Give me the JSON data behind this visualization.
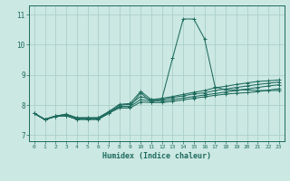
{
  "xlabel": "Humidex (Indice chaleur)",
  "background_color": "#cce8e3",
  "grid_color": "#aacfca",
  "line_color": "#1e6b5e",
  "xlim": [
    -0.5,
    23.5
  ],
  "ylim": [
    6.8,
    11.3
  ],
  "xticks": [
    0,
    1,
    2,
    3,
    4,
    5,
    6,
    7,
    8,
    9,
    10,
    11,
    12,
    13,
    14,
    15,
    16,
    17,
    18,
    19,
    20,
    21,
    22,
    23
  ],
  "yticks": [
    7,
    8,
    9,
    10,
    11
  ],
  "series": [
    [
      7.72,
      7.52,
      7.63,
      7.65,
      7.52,
      7.52,
      7.52,
      7.72,
      7.95,
      7.95,
      8.4,
      8.1,
      8.2,
      9.55,
      10.85,
      10.85,
      10.2,
      8.6,
      8.5,
      8.5,
      8.5,
      8.48,
      8.48,
      8.48
    ],
    [
      7.72,
      7.52,
      7.63,
      7.7,
      7.58,
      7.58,
      7.58,
      7.78,
      8.02,
      8.05,
      8.45,
      8.18,
      8.22,
      8.28,
      8.35,
      8.42,
      8.48,
      8.57,
      8.62,
      8.68,
      8.73,
      8.78,
      8.8,
      8.83
    ],
    [
      7.72,
      7.53,
      7.64,
      7.68,
      7.57,
      7.57,
      7.57,
      7.77,
      8.0,
      8.02,
      8.28,
      8.17,
      8.18,
      8.25,
      8.3,
      8.37,
      8.4,
      8.48,
      8.53,
      8.58,
      8.63,
      8.68,
      8.72,
      8.76
    ],
    [
      7.72,
      7.51,
      7.62,
      7.65,
      7.54,
      7.54,
      7.54,
      7.74,
      7.95,
      7.95,
      8.18,
      8.13,
      8.13,
      8.18,
      8.23,
      8.28,
      8.33,
      8.38,
      8.43,
      8.48,
      8.53,
      8.58,
      8.63,
      8.67
    ],
    [
      7.72,
      7.51,
      7.62,
      7.64,
      7.53,
      7.53,
      7.53,
      7.73,
      7.9,
      7.9,
      8.1,
      8.08,
      8.08,
      8.12,
      8.17,
      8.22,
      8.27,
      8.32,
      8.36,
      8.39,
      8.41,
      8.44,
      8.49,
      8.54
    ]
  ]
}
